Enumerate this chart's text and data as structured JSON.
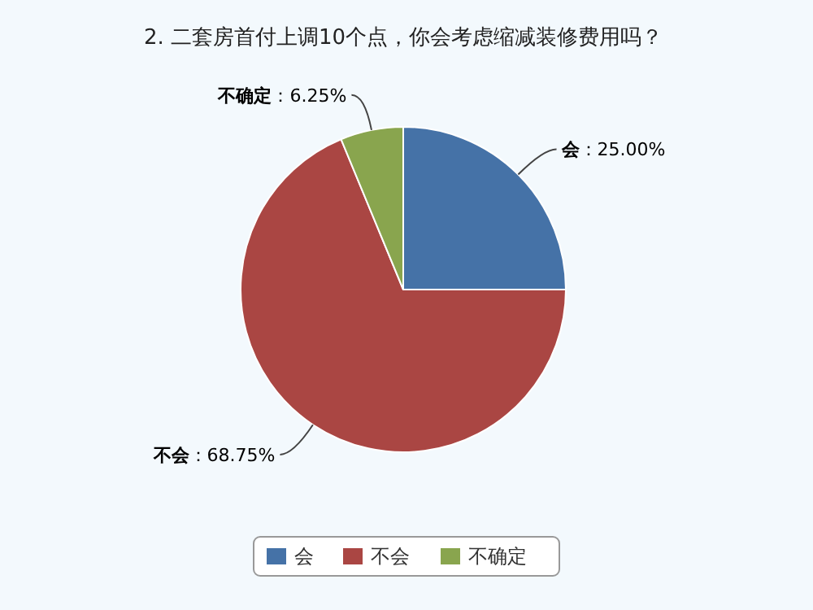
{
  "chart_data": {
    "type": "pie",
    "title": "2. 二套房首付上调10个点，你会考虑缩减装修费用吗？",
    "categories": [
      "会",
      "不会",
      "不确定"
    ],
    "values": [
      25,
      68.75,
      6.25
    ],
    "colors": [
      "#4572a7",
      "#aa4643",
      "#89a54e"
    ],
    "value_labels": [
      "：25.00%",
      "：68.75%",
      "：6.25%"
    ],
    "legend": "bottom"
  }
}
